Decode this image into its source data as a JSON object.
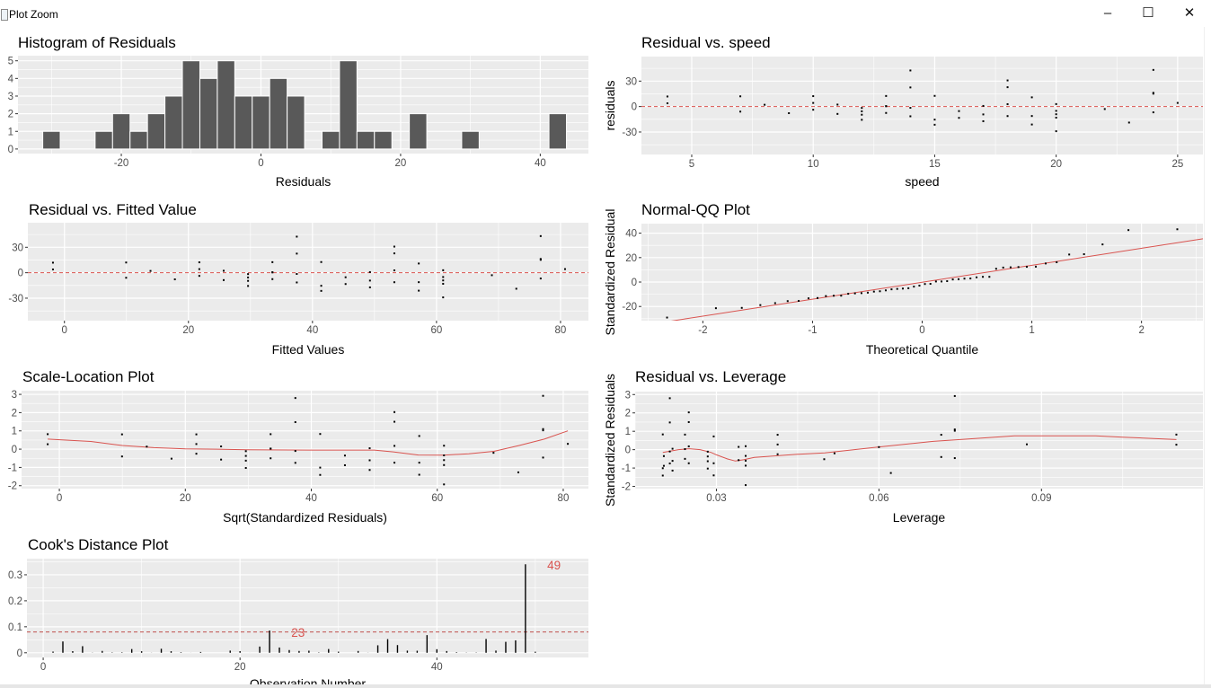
{
  "window": {
    "title": "Plot Zoom",
    "minimize_label": "–",
    "maximize_label": "☐",
    "close_label": "✕"
  },
  "colors": {
    "panel_bg": "#EBEBEB",
    "grid": "#FFFFFF",
    "bar_fill": "#595959",
    "point": "#000000",
    "reference": "#D9534F",
    "tick_text": "#4D4D4D"
  },
  "observations": {
    "speed": [
      4,
      4,
      7,
      7,
      8,
      9,
      10,
      10,
      10,
      11,
      11,
      12,
      12,
      12,
      12,
      13,
      13,
      13,
      13,
      14,
      14,
      14,
      14,
      15,
      15,
      15,
      16,
      16,
      17,
      17,
      17,
      18,
      18,
      18,
      18,
      19,
      19,
      19,
      20,
      20,
      20,
      20,
      20,
      22,
      23,
      24,
      24,
      24,
      24,
      25
    ],
    "fitted": [
      -1.85,
      -1.85,
      9.95,
      9.95,
      13.88,
      17.81,
      21.75,
      21.75,
      21.75,
      25.68,
      25.68,
      29.61,
      29.61,
      29.61,
      29.61,
      33.54,
      33.54,
      33.54,
      33.54,
      37.47,
      37.47,
      37.47,
      37.47,
      41.41,
      41.41,
      41.41,
      45.34,
      45.34,
      49.27,
      49.27,
      49.27,
      53.2,
      53.2,
      53.2,
      53.2,
      57.14,
      57.14,
      57.14,
      61.07,
      61.07,
      61.07,
      61.07,
      61.07,
      68.93,
      72.87,
      76.8,
      76.8,
      76.8,
      76.8,
      80.73
    ],
    "residual": [
      3.85,
      11.85,
      -5.95,
      12.05,
      2.12,
      -7.81,
      -3.74,
      4.26,
      12.26,
      -8.68,
      2.32,
      -15.61,
      -9.61,
      -5.61,
      -1.61,
      -7.54,
      0.46,
      0.46,
      12.46,
      -11.47,
      -1.47,
      22.53,
      42.53,
      -21.41,
      -15.41,
      12.59,
      -13.34,
      -5.34,
      -17.27,
      -9.27,
      0.73,
      -11.2,
      2.8,
      22.8,
      30.8,
      -21.14,
      -11.14,
      10.86,
      -29.07,
      -13.07,
      -9.07,
      -5.07,
      2.93,
      -2.93,
      -18.87,
      -6.8,
      15.2,
      16.2,
      43.2,
      4.27
    ],
    "std_residual": [
      0.27,
      0.82,
      -0.4,
      0.81,
      0.14,
      -0.52,
      -0.25,
      0.28,
      0.81,
      -0.57,
      0.15,
      -1.03,
      -0.63,
      -0.37,
      -0.11,
      -0.5,
      0.03,
      0.03,
      0.82,
      -0.75,
      -0.1,
      1.48,
      2.8,
      -1.41,
      -1.01,
      0.83,
      -0.88,
      -0.35,
      -1.14,
      -0.61,
      0.05,
      -0.74,
      0.18,
      1.5,
      2.03,
      -1.4,
      -0.74,
      0.72,
      -1.93,
      -0.87,
      -0.6,
      -0.34,
      0.19,
      -0.2,
      -1.27,
      -0.46,
      1.03,
      1.1,
      2.92,
      0.29
    ],
    "leverage": [
      0.1149,
      0.1149,
      0.0715,
      0.0715,
      0.06,
      0.0499,
      0.0413,
      0.0413,
      0.0413,
      0.0341,
      0.0341,
      0.0284,
      0.0284,
      0.0284,
      0.0284,
      0.0242,
      0.0242,
      0.0242,
      0.0242,
      0.0214,
      0.0214,
      0.0214,
      0.0214,
      0.0201,
      0.0201,
      0.0201,
      0.0203,
      0.0203,
      0.0219,
      0.0219,
      0.0219,
      0.0249,
      0.0249,
      0.0249,
      0.0249,
      0.0295,
      0.0295,
      0.0295,
      0.0354,
      0.0354,
      0.0354,
      0.0354,
      0.0354,
      0.0518,
      0.0622,
      0.074,
      0.074,
      0.074,
      0.074,
      0.0873
    ],
    "cooks_distance": [
      0.0046,
      0.0435,
      0.0062,
      0.0254,
      0.0006,
      0.0071,
      0.0013,
      0.0017,
      0.0143,
      0.0058,
      0.0004,
      0.0155,
      0.0059,
      0.002,
      0.0002,
      0.0031,
      0.0,
      0.0,
      0.0083,
      0.0062,
      0.0001,
      0.024,
      0.0856,
      0.0203,
      0.0105,
      0.007,
      0.008,
      0.0013,
      0.0144,
      0.0042,
      0.0,
      0.0069,
      0.0004,
      0.0288,
      0.0526,
      0.0296,
      0.0082,
      0.0078,
      0.0679,
      0.0137,
      0.0066,
      0.0021,
      0.0007,
      0.001,
      0.0532,
      0.0084,
      0.0421,
      0.0479,
      0.3404,
      0.004
    ]
  },
  "chart_data": [
    {
      "id": "histogram",
      "type": "bar",
      "title": "Histogram of Residuals",
      "xlabel": "Residuals",
      "ylabel": "",
      "xlim": [
        -34.8,
        46.9
      ],
      "ylim": [
        -0.26,
        5.29
      ],
      "xticks": [
        -20,
        0,
        20,
        40
      ],
      "yticks": [
        0,
        1,
        2,
        3,
        4,
        5
      ],
      "grid": true,
      "bin_width": 2.5,
      "bin_centers": [
        -30,
        -27.5,
        -25,
        -22.5,
        -20,
        -17.5,
        -15,
        -12.5,
        -10,
        -7.5,
        -5,
        -2.5,
        0,
        2.5,
        5,
        7.5,
        10,
        12.5,
        15,
        17.5,
        20,
        22.5,
        25,
        27.5,
        30,
        32.5,
        35,
        37.5,
        40,
        42.5
      ],
      "counts": [
        1,
        0,
        0,
        1,
        2,
        1,
        2,
        3,
        5,
        4,
        5,
        3,
        3,
        4,
        3,
        0,
        1,
        5,
        1,
        1,
        0,
        2,
        0,
        0,
        1,
        0,
        0,
        0,
        0,
        2
      ]
    },
    {
      "id": "residual-vs-speed",
      "type": "scatter",
      "title": "Residual vs. speed",
      "xlabel": "speed",
      "ylabel": "residuals",
      "x_source": "speed",
      "y_source": "residual",
      "xlim": [
        2.93,
        26.04
      ],
      "ylim": [
        -56.5,
        58.9
      ],
      "xticks": [
        5,
        10,
        15,
        20,
        25
      ],
      "yticks": [
        -30,
        0,
        30
      ],
      "grid": true,
      "hline": {
        "y": 0,
        "style": "dashed"
      }
    },
    {
      "id": "residual-vs-fitted",
      "type": "scatter",
      "title": "Residual vs. Fitted Value",
      "xlabel": "Fitted Values",
      "ylabel": "",
      "x_source": "fitted",
      "y_source": "residual",
      "xlim": [
        -5.9,
        84.5
      ],
      "ylim": [
        -56.5,
        58.9
      ],
      "xticks": [
        0,
        20,
        40,
        60,
        80
      ],
      "yticks": [
        -30,
        0,
        30
      ],
      "grid": true,
      "hline": {
        "y": 0,
        "style": "dashed"
      }
    },
    {
      "id": "normal-qq",
      "type": "scatter",
      "title": "Normal-QQ Plot",
      "xlabel": "Theoretical Quantile",
      "ylabel": "Standardized Residual",
      "x_source": "theoretical_quantile",
      "y_source": "residual",
      "sorted": true,
      "xlim": [
        -2.56,
        2.56
      ],
      "ylim": [
        -31.6,
        47.8
      ],
      "xticks": [
        -2,
        -1,
        0,
        1,
        2
      ],
      "yticks": [
        -20,
        0,
        20,
        40
      ],
      "grid": true,
      "abline": {
        "intercept": -0.155,
        "slope": 13.89
      }
    },
    {
      "id": "scale-location",
      "type": "scatter",
      "title": "Scale-Location Plot",
      "xlabel": "Sqrt(Standardized Residuals)",
      "ylabel": "",
      "x_source": "fitted",
      "y_source": "std_residual",
      "xlim": [
        -6.0,
        84.0
      ],
      "ylim": [
        -2.16,
        3.2
      ],
      "xticks": [
        0,
        20,
        40,
        60,
        80
      ],
      "yticks": [
        -2,
        -1,
        0,
        1,
        2,
        3
      ],
      "grid": true,
      "smooth": {
        "x": [
          -1.85,
          5,
          10,
          15,
          20,
          25,
          30,
          40,
          50,
          53,
          57,
          61,
          65,
          69,
          73,
          77,
          80.73
        ],
        "y": [
          0.55,
          0.42,
          0.2,
          0.08,
          0.02,
          0.0,
          -0.03,
          -0.05,
          -0.05,
          -0.15,
          -0.32,
          -0.33,
          -0.25,
          -0.12,
          0.2,
          0.55,
          1.0
        ]
      }
    },
    {
      "id": "residual-vs-leverage",
      "type": "scatter",
      "title": "Residual vs. Leverage",
      "xlabel": "Leverage",
      "ylabel": "Standardized Residuals",
      "x_source": "leverage",
      "y_source": "std_residual",
      "xlim": [
        0.015,
        0.1198
      ],
      "ylim": [
        -2.12,
        3.16
      ],
      "xticks": [
        0.03,
        0.06,
        0.09
      ],
      "yticks": [
        -2,
        -1,
        0,
        1,
        2,
        3
      ],
      "grid": true,
      "smooth": {
        "x": [
          0.0201,
          0.023,
          0.025,
          0.027,
          0.029,
          0.03,
          0.032,
          0.0335,
          0.035,
          0.037,
          0.045,
          0.05,
          0.06,
          0.07,
          0.075,
          0.085,
          0.1,
          0.105,
          0.1149
        ],
        "y": [
          -0.15,
          0.0,
          0.05,
          0.0,
          -0.15,
          -0.28,
          -0.5,
          -0.62,
          -0.55,
          -0.42,
          -0.25,
          -0.18,
          0.15,
          0.45,
          0.55,
          0.75,
          0.75,
          0.68,
          0.55
        ]
      }
    },
    {
      "id": "cooks-distance",
      "type": "bar",
      "title": "Cook's Distance Plot",
      "xlabel": "Observation Number",
      "ylabel": "",
      "x_source": "observation_number",
      "y_source": "cooks_distance",
      "xlim": [
        -1.65,
        55.4
      ],
      "ylim": [
        -0.018,
        0.362
      ],
      "xticks": [
        0,
        20,
        40
      ],
      "yticks": [
        0.0,
        0.1,
        0.2,
        0.3
      ],
      "grid": true,
      "hline": {
        "y": 0.08,
        "style": "dashed"
      },
      "annotations": [
        {
          "text": "23",
          "x": 25.9,
          "y": 0.078
        },
        {
          "text": "49",
          "x": 51.9,
          "y": 0.337
        }
      ]
    }
  ]
}
